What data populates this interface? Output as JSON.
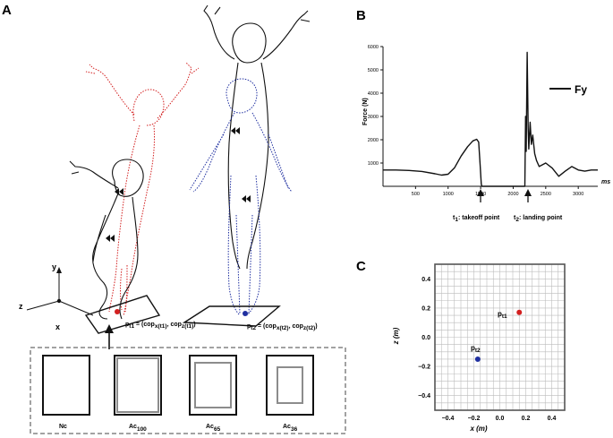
{
  "panels": {
    "a": {
      "letter": "A",
      "axes": {
        "y": "y",
        "z": "z",
        "x": "x"
      },
      "p1_label": "p",
      "p1_sub": "t1",
      "p1_eq": " = (cop",
      "p1_sub_x": "x(t1)",
      "p1_comma": ", cop",
      "p1_sub_z": "z(t1)",
      "p1_close": ")",
      "p2_label": "p",
      "p2_sub": "t2",
      "p2_eq": " = (cop",
      "p2_sub_x": "x(t2)",
      "p2_comma": ", cop",
      "p2_sub_z": "z(t2)",
      "p2_close": ")",
      "conditions": [
        {
          "main": "Nc",
          "sub": ""
        },
        {
          "main": "Ac",
          "sub": "100"
        },
        {
          "main": "Ac",
          "sub": "65"
        },
        {
          "main": "Ac",
          "sub": "36"
        }
      ]
    },
    "b": {
      "letter": "B",
      "ylabel": "Force (N)",
      "xunit": "ms",
      "legend": "Fy",
      "yticks": [
        "1000",
        "2000",
        "3000",
        "4000",
        "5000",
        "6000"
      ],
      "xticks": [
        "500",
        "1000",
        "1500",
        "2000",
        "2500",
        "3000"
      ],
      "annot1_t": "t",
      "annot1_sub": "1",
      "annot1_text": ": takeoff point",
      "annot2_t": "t",
      "annot2_sub": "2",
      "annot2_text": ": landing point"
    },
    "c": {
      "letter": "C",
      "xlabel": "x (m)",
      "ylabel": "z (m)",
      "xticks": [
        "−0.4",
        "−0.2",
        "0.0",
        "0.2",
        "0.4"
      ],
      "yticks": [
        "0.4",
        "0.2",
        "0.0",
        "−0.2",
        "−0.4"
      ],
      "p1_label": "p",
      "p1_sub": "t1",
      "p2_label": "p",
      "p2_sub": "t2"
    }
  },
  "chart_data": [
    {
      "type": "line",
      "ylabel": "Force (N)",
      "xlabel": "ms",
      "xlim": [
        0,
        3300
      ],
      "ylim": [
        0,
        6000
      ],
      "series": [
        {
          "name": "Fy",
          "x": [
            0,
            200,
            400,
            600,
            800,
            900,
            1000,
            1100,
            1200,
            1300,
            1380,
            1440,
            1470,
            1490,
            1510,
            1520,
            2180,
            2190,
            2200,
            2215,
            2230,
            2240,
            2260,
            2280,
            2300,
            2330,
            2360,
            2400,
            2500,
            2600,
            2700,
            2800,
            2900,
            3000,
            3100,
            3200,
            3300
          ],
          "y": [
            700,
            700,
            680,
            640,
            540,
            480,
            520,
            800,
            1300,
            1700,
            1950,
            2020,
            1900,
            1000,
            100,
            0,
            0,
            3000,
            1500,
            5750,
            2500,
            1600,
            2750,
            1800,
            2200,
            1400,
            1100,
            850,
            1000,
            780,
            430,
            650,
            850,
            700,
            650,
            700,
            700
          ]
        }
      ],
      "annotations": [
        "t1: takeoff point",
        "t2: landing point"
      ]
    },
    {
      "type": "scatter",
      "xlabel": "x (m)",
      "ylabel": "z (m)",
      "xlim": [
        -0.5,
        0.5
      ],
      "ylim": [
        -0.5,
        0.5
      ],
      "grid": true,
      "points": [
        {
          "name": "pt1",
          "x": 0.15,
          "y": 0.17,
          "color": "#d32020"
        },
        {
          "name": "pt2",
          "x": -0.17,
          "y": -0.15,
          "color": "#1f2fa0"
        }
      ]
    }
  ],
  "colors": {
    "red": "#d32020",
    "blue": "#1f2fa0",
    "gray": "#8c8c8c"
  }
}
